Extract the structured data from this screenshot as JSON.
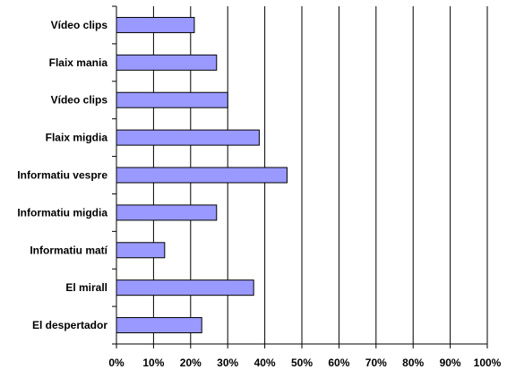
{
  "chart_data": {
    "type": "bar",
    "orientation": "horizontal",
    "categories": [
      "Vídeo clips",
      "Flaix mania",
      "Vídeo clips",
      "Flaix migdia",
      "Informatiu vespre",
      "Informatiu migdia",
      "Informatiu matí",
      "El mirall",
      "El despertador"
    ],
    "values": [
      21,
      27,
      30,
      38.5,
      46,
      27,
      13,
      37,
      23
    ],
    "xlim": [
      0,
      100
    ],
    "x_ticks": [
      0,
      10,
      20,
      30,
      40,
      50,
      60,
      70,
      80,
      90,
      100
    ],
    "x_tick_labels": [
      "0%",
      "10%",
      "20%",
      "30%",
      "40%",
      "50%",
      "60%",
      "70%",
      "80%",
      "90%",
      "100%"
    ],
    "grid": "vertical",
    "legend": "none",
    "bar_color": "#9999ff",
    "bar_edge_color": "#000000"
  }
}
